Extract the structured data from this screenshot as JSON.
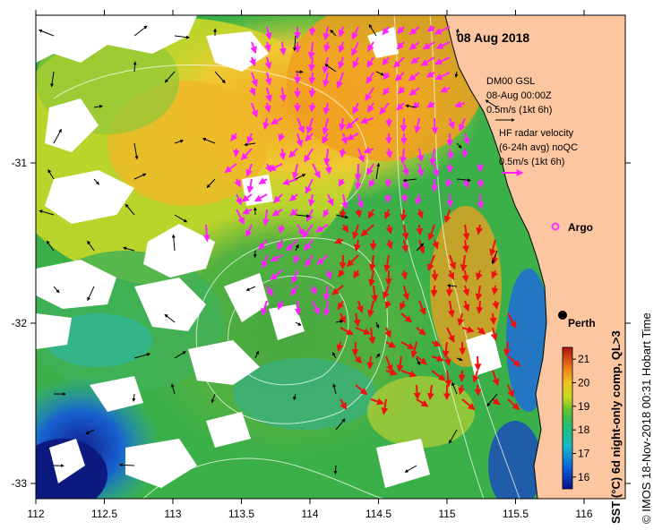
{
  "map": {
    "date_label": "08 Aug 2018",
    "legend": {
      "gsl_title": "DM00 GSL",
      "gsl_time": "08-Aug 00:00Z",
      "gsl_scale": "0.5m/s (1kt 6h)",
      "radar_title": "HF radar velocity",
      "radar_avg": "(6-24h avg) noQC",
      "radar_scale": "0.5m/s (1kt 6h)"
    },
    "markers": [
      {
        "name": "Argo",
        "label": "Argo",
        "lon": 115.78,
        "lat": -31.4,
        "symbol": "circle-open",
        "color": "#ff33ff"
      },
      {
        "name": "Perth",
        "label": "Perth",
        "lon": 115.86,
        "lat": -31.95,
        "symbol": "circle-filled",
        "color": "#000000"
      }
    ],
    "x_ticks": [
      "112",
      "112.5",
      "113",
      "113.5",
      "114",
      "114.5",
      "115",
      "115.5",
      "116"
    ],
    "y_ticks": [
      "-31",
      "-32",
      "-33"
    ],
    "colorbar": {
      "label": "SST (°C) 6d night-only comp, QL>3",
      "ticks": [
        "16",
        "17",
        "18",
        "19",
        "20",
        "21"
      ],
      "range": [
        15.5,
        21.5
      ]
    },
    "credit": "© IMOS 18-Nov-2018 00:31 Hobart Time",
    "colors": {
      "land": "#fcc6a0",
      "radar_vectors": "#ff22ff",
      "radar_vectors_south": "#ee1111",
      "gsl_vectors": "#000000"
    }
  }
}
